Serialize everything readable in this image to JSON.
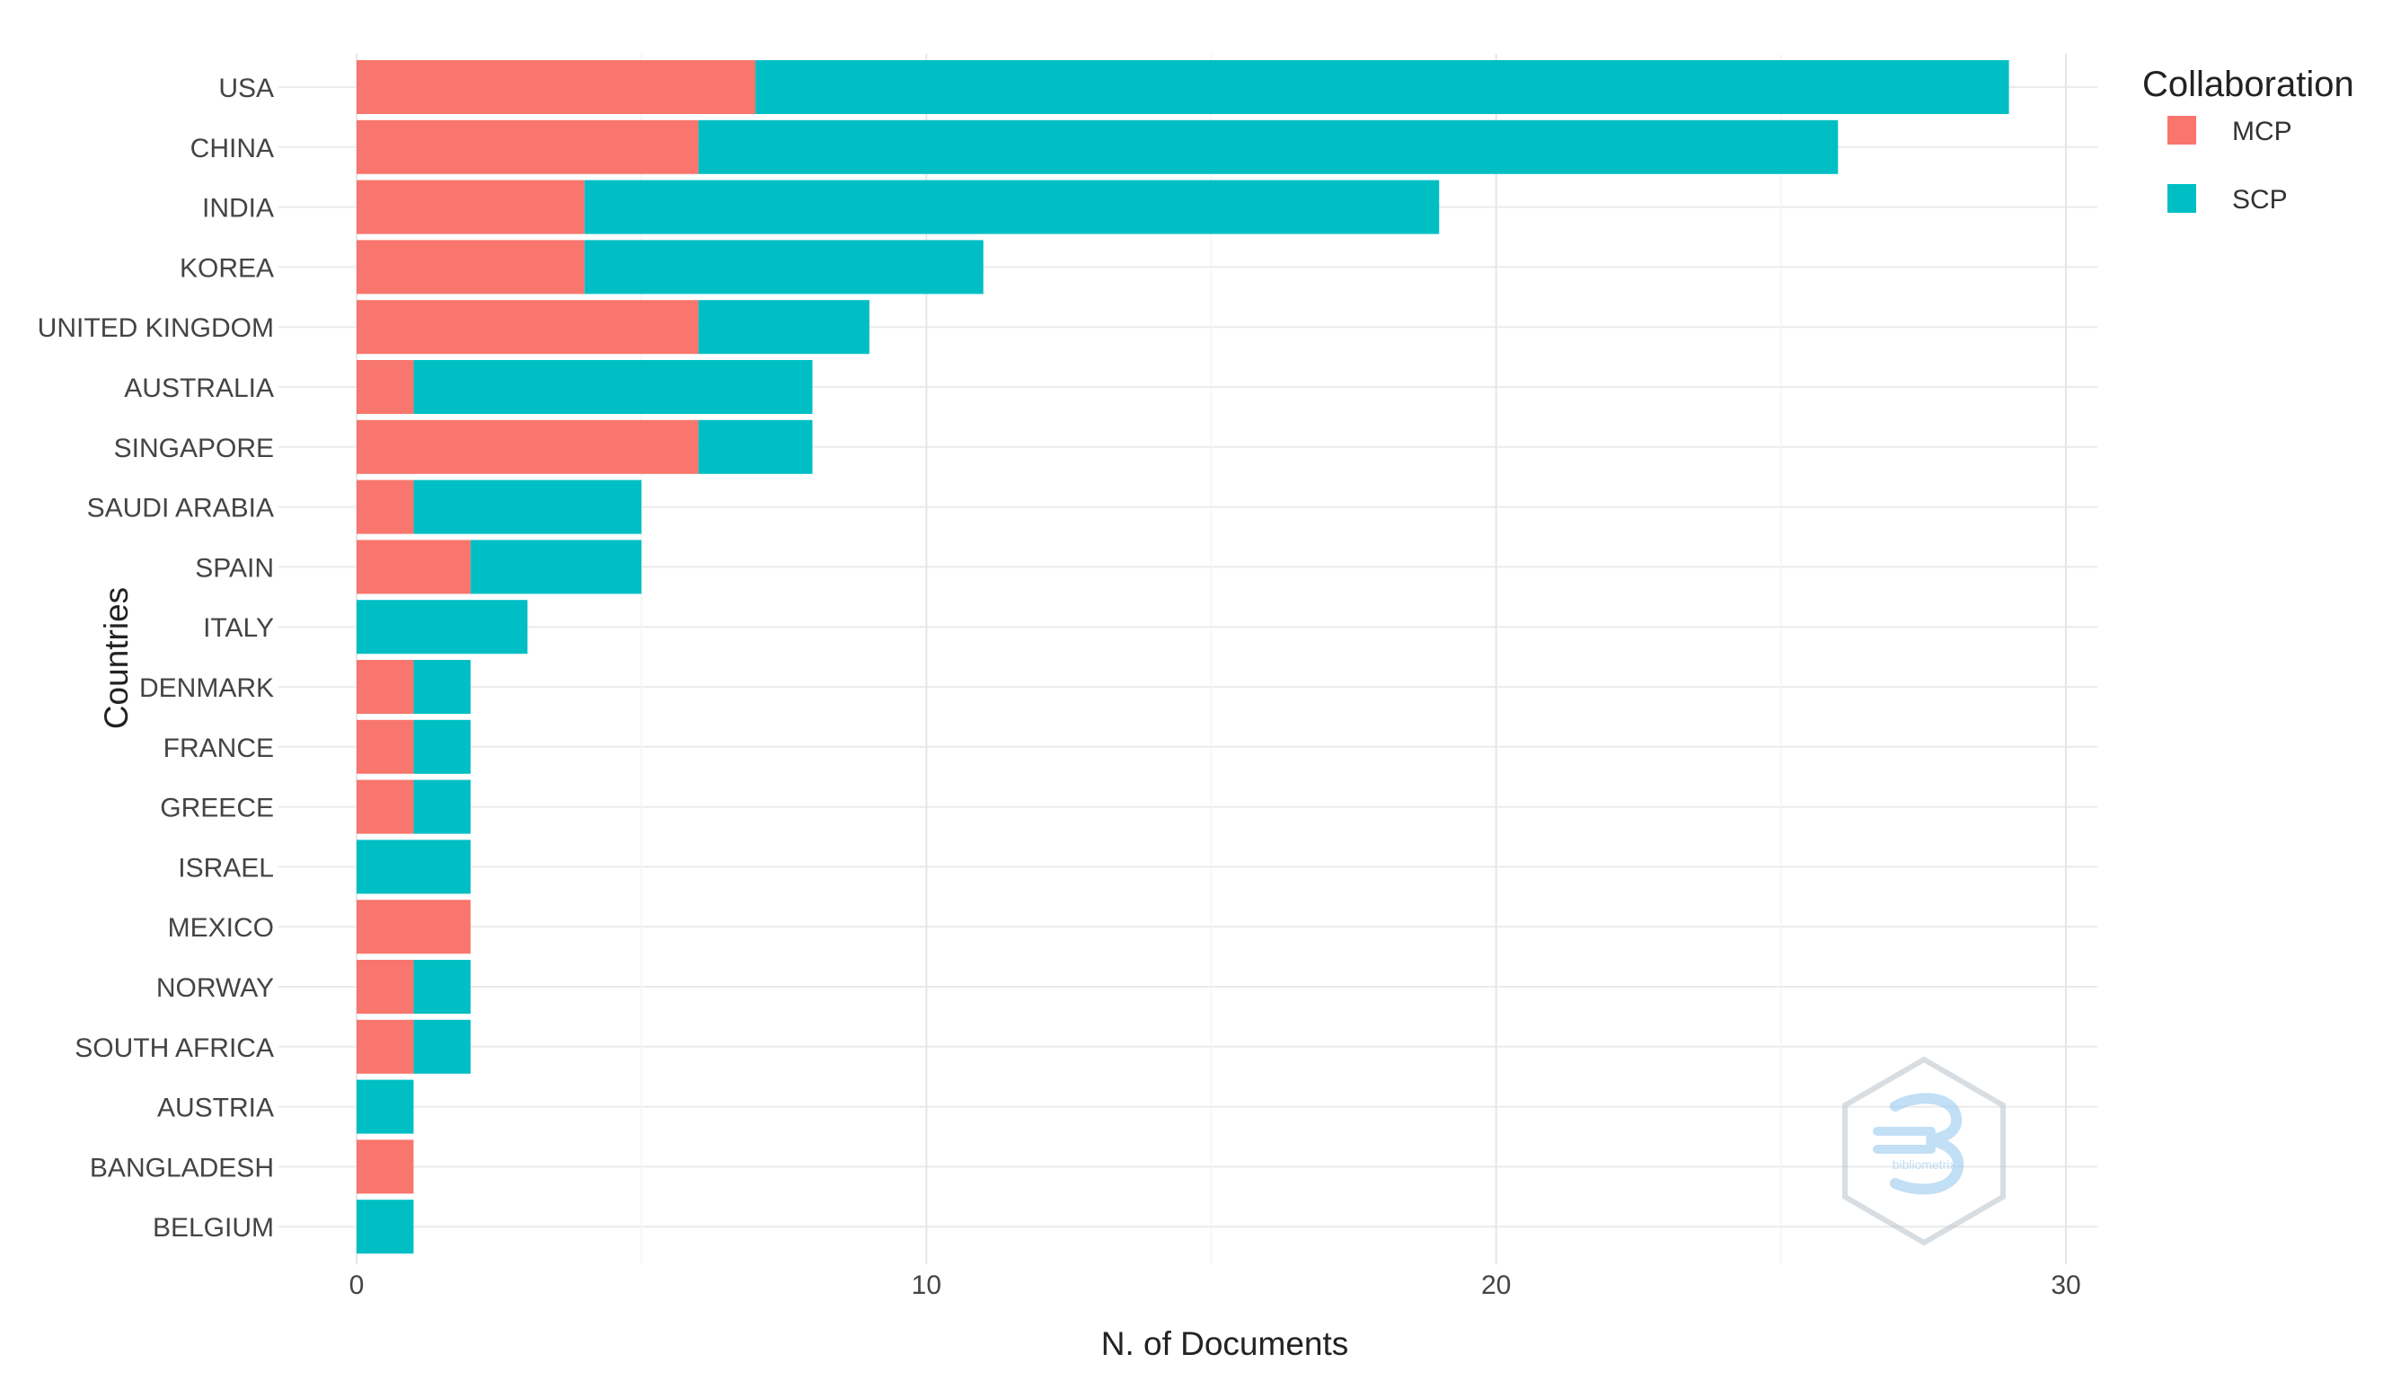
{
  "chart_data": {
    "type": "bar",
    "orientation": "horizontal",
    "stacked": true,
    "categories": [
      "USA",
      "CHINA",
      "INDIA",
      "KOREA",
      "UNITED KINGDOM",
      "AUSTRALIA",
      "SINGAPORE",
      "SAUDI ARABIA",
      "SPAIN",
      "ITALY",
      "DENMARK",
      "FRANCE",
      "GREECE",
      "ISRAEL",
      "MEXICO",
      "NORWAY",
      "SOUTH AFRICA",
      "AUSTRIA",
      "BANGLADESH",
      "BELGIUM"
    ],
    "series": [
      {
        "name": "MCP",
        "color": "#F8766D",
        "values": [
          7,
          6,
          4,
          4,
          6,
          1,
          6,
          1,
          2,
          0,
          1,
          1,
          1,
          0,
          2,
          1,
          1,
          0,
          1,
          0
        ]
      },
      {
        "name": "SCP",
        "color": "#00BFC4",
        "values": [
          22,
          20,
          15,
          7,
          3,
          7,
          2,
          4,
          3,
          3,
          1,
          1,
          1,
          2,
          0,
          1,
          1,
          1,
          0,
          1
        ]
      }
    ],
    "xlabel": "N. of Documents",
    "ylabel": "Countries",
    "xlim": [
      0,
      30
    ],
    "xticks": [
      0,
      10,
      20,
      30
    ],
    "grid": true,
    "legend": {
      "title": "Collaboration",
      "position": "right"
    }
  },
  "watermark": {
    "label": "bibliometrix"
  }
}
